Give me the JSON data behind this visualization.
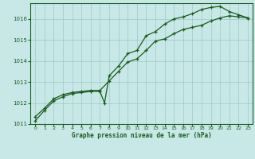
{
  "title": "Graphe pression niveau de la mer (hPa)",
  "bg_color": "#c8e8e8",
  "line_color": "#1a5c1a",
  "grid_color": "#9ec8c8",
  "xlim": [
    -0.5,
    23.5
  ],
  "ylim": [
    1011.0,
    1016.75
  ],
  "yticks": [
    1011,
    1012,
    1013,
    1014,
    1015,
    1016
  ],
  "xticks": [
    0,
    1,
    2,
    3,
    4,
    5,
    6,
    7,
    8,
    9,
    10,
    11,
    12,
    13,
    14,
    15,
    16,
    17,
    18,
    19,
    20,
    21,
    22,
    23
  ],
  "line1_x": [
    0,
    1,
    2,
    3,
    4,
    5,
    6,
    7,
    8,
    9,
    10,
    11,
    12,
    13,
    14,
    15,
    16,
    17,
    18,
    19,
    20,
    21,
    22,
    23
  ],
  "line1_y": [
    1011.35,
    1011.75,
    1012.2,
    1012.4,
    1012.5,
    1012.55,
    1012.6,
    1012.6,
    1013.05,
    1013.5,
    1013.95,
    1014.1,
    1014.5,
    1014.95,
    1015.05,
    1015.3,
    1015.5,
    1015.6,
    1015.7,
    1015.9,
    1016.05,
    1016.15,
    1016.1,
    1016.05
  ],
  "line2_x": [
    0,
    1,
    2,
    3,
    4,
    5,
    6,
    7,
    7.5,
    8,
    9,
    10,
    11,
    12,
    13,
    14,
    15,
    16,
    17,
    18,
    19,
    20,
    21,
    22,
    23
  ],
  "line2_y": [
    1011.15,
    1011.65,
    1012.1,
    1012.3,
    1012.45,
    1012.5,
    1012.55,
    1012.55,
    1012.0,
    1013.3,
    1013.75,
    1014.35,
    1014.5,
    1015.2,
    1015.4,
    1015.75,
    1016.0,
    1016.1,
    1016.25,
    1016.45,
    1016.55,
    1016.6,
    1016.35,
    1016.2,
    1016.05
  ]
}
